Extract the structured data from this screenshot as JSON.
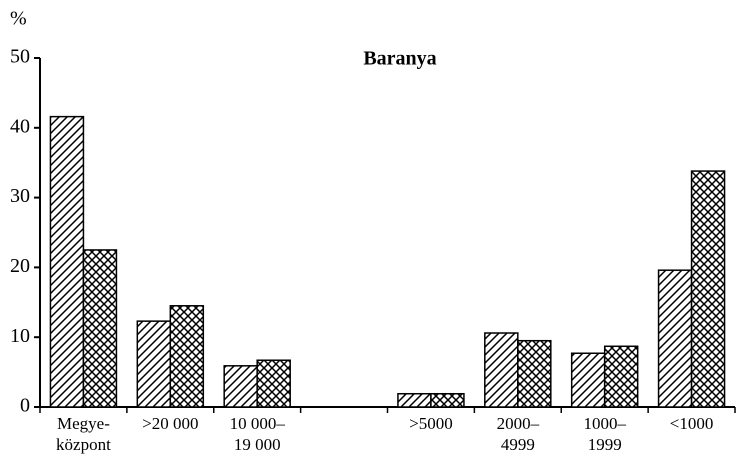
{
  "chart_data": {
    "type": "bar",
    "title": "Baranya",
    "ylabel": "%",
    "categories": [
      "Megye-\nközpont",
      ">20 000",
      "10 000–\n19 000",
      null,
      ">5000",
      "2000–\n4999",
      "1000–\n1999",
      "<1000"
    ],
    "series": [
      {
        "color": "#000000",
        "pattern": "diagonal",
        "values": [
          41.6,
          12.3,
          5.9,
          null,
          1.9,
          10.6,
          7.7,
          19.6
        ]
      },
      {
        "color": "#000000",
        "pattern": "crosshatch",
        "values": [
          22.5,
          14.5,
          6.7,
          null,
          1.9,
          9.5,
          8.7,
          33.8
        ]
      }
    ],
    "ylim": [
      0,
      50
    ],
    "yticks": [
      0,
      10,
      20,
      30,
      40,
      50
    ],
    "grid": false
  }
}
